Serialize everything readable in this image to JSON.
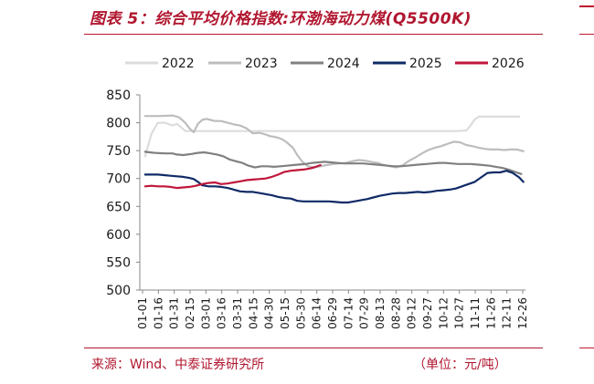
{
  "title": "图表 5：综合平均价格指数:环渤海动力煤(Q5500K)",
  "source_label": "来源：",
  "source_text": "Wind、中泰证券研究所",
  "unit_text": "（单位：元/吨）",
  "colors": {
    "accent": "#b0162f",
    "s2022": "#dcdcdc",
    "s2023": "#bdbdbd",
    "s2024": "#808080",
    "s2025": "#0f2a66",
    "s2026": "#c0163a"
  },
  "chart_data": {
    "type": "line",
    "title": "综合平均价格指数:环渤海动力煤(Q5500K)",
    "xlabel": "",
    "ylabel": "",
    "ylim": [
      500,
      850
    ],
    "yticks": [
      500,
      550,
      600,
      650,
      700,
      750,
      800,
      850
    ],
    "x_range": [
      1,
      366
    ],
    "grid": false,
    "legend": "top",
    "xticks": [
      "01-01",
      "01-16",
      "01-31",
      "02-15",
      "03-01",
      "03-16",
      "03-31",
      "04-15",
      "04-30",
      "05-15",
      "05-30",
      "06-14",
      "06-29",
      "07-14",
      "07-29",
      "08-13",
      "08-28",
      "09-12",
      "09-27",
      "10-12",
      "10-27",
      "11-11",
      "11-26",
      "12-11",
      "12-26"
    ],
    "series": [
      {
        "name": "2022",
        "color": "#dcdcdc",
        "x": [
          6,
          12,
          18,
          25,
          32,
          36,
          40,
          44,
          48,
          55,
          70,
          100,
          150,
          200,
          250,
          300,
          310,
          314,
          318,
          322,
          330,
          360
        ],
        "y": [
          740,
          780,
          800,
          800,
          795,
          798,
          792,
          785,
          785,
          785,
          785,
          785,
          785,
          785,
          785,
          785,
          786,
          795,
          806,
          811,
          811,
          811
        ]
      },
      {
        "name": "2023",
        "color": "#bdbdbd",
        "x": [
          6,
          20,
          32,
          38,
          44,
          48,
          52,
          56,
          60,
          64,
          68,
          72,
          78,
          84,
          90,
          96,
          102,
          108,
          114,
          120,
          124,
          128,
          132,
          136,
          140,
          146,
          150,
          155,
          160,
          166,
          172,
          178,
          184,
          190,
          196,
          202,
          208,
          214,
          220,
          226,
          232,
          238,
          244,
          250,
          256,
          262,
          268,
          274,
          280,
          286,
          292,
          298,
          304,
          310,
          316,
          322,
          328,
          334,
          340,
          346,
          352,
          358,
          364
        ],
        "y": [
          812,
          812,
          813,
          810,
          800,
          790,
          783,
          798,
          805,
          807,
          805,
          803,
          803,
          800,
          797,
          795,
          790,
          781,
          782,
          779,
          776,
          775,
          773,
          770,
          765,
          755,
          742,
          730,
          722,
          720,
          722,
          724,
          726,
          727,
          728,
          731,
          733,
          732,
          730,
          728,
          724,
          722,
          720,
          724,
          732,
          738,
          745,
          751,
          755,
          758,
          762,
          766,
          765,
          760,
          758,
          755,
          753,
          752,
          752,
          751,
          752,
          752,
          749
        ]
      },
      {
        "name": "2024",
        "color": "#808080",
        "x": [
          6,
          15,
          25,
          32,
          36,
          42,
          50,
          56,
          62,
          68,
          74,
          80,
          86,
          92,
          98,
          104,
          110,
          116,
          122,
          128,
          134,
          140,
          146,
          152,
          158,
          164,
          170,
          176,
          182,
          188,
          194,
          200,
          206,
          212,
          218,
          224,
          230,
          236,
          242,
          248,
          254,
          260,
          266,
          272,
          278,
          284,
          290,
          296,
          302,
          308,
          314,
          320,
          326,
          332,
          338,
          344,
          350,
          356,
          362
        ],
        "y": [
          748,
          746,
          745,
          745,
          743,
          742,
          744,
          746,
          747,
          745,
          743,
          740,
          734,
          731,
          728,
          723,
          720,
          722,
          722,
          721,
          722,
          723,
          724,
          725,
          726,
          728,
          729,
          730,
          729,
          728,
          727,
          727,
          727,
          727,
          726,
          725,
          724,
          723,
          722,
          722,
          723,
          724,
          725,
          726,
          727,
          728,
          728,
          727,
          726,
          726,
          726,
          725,
          724,
          723,
          721,
          719,
          716,
          712,
          708
        ]
      },
      {
        "name": "2025",
        "color": "#0f2a66",
        "x": [
          6,
          12,
          18,
          24,
          30,
          36,
          42,
          48,
          52,
          56,
          60,
          66,
          72,
          78,
          84,
          90,
          96,
          102,
          108,
          114,
          120,
          126,
          132,
          138,
          144,
          150,
          156,
          162,
          168,
          174,
          180,
          186,
          192,
          198,
          204,
          210,
          216,
          222,
          228,
          234,
          240,
          246,
          252,
          258,
          264,
          270,
          276,
          282,
          288,
          294,
          300,
          306,
          312,
          318,
          324,
          330,
          336,
          342,
          348,
          354,
          360,
          364
        ],
        "y": [
          707,
          707,
          707,
          706,
          705,
          704,
          703,
          701,
          699,
          694,
          688,
          686,
          686,
          685,
          683,
          680,
          677,
          676,
          676,
          674,
          672,
          670,
          667,
          665,
          664,
          660,
          659,
          659,
          659,
          659,
          659,
          658,
          657,
          657,
          659,
          661,
          663,
          666,
          669,
          671,
          673,
          674,
          674,
          675,
          676,
          675,
          676,
          678,
          679,
          680,
          682,
          686,
          690,
          694,
          702,
          710,
          711,
          711,
          714,
          710,
          702,
          694
        ]
      },
      {
        "name": "2026",
        "color": "#c0163a",
        "x": [
          6,
          12,
          18,
          24,
          30,
          36,
          42,
          48,
          54,
          60,
          66,
          72,
          78,
          84,
          90,
          96,
          102,
          108,
          114,
          120,
          126,
          132,
          138,
          144,
          150,
          156,
          162,
          166,
          172
        ],
        "y": [
          686,
          687,
          686,
          686,
          685,
          683,
          684,
          685,
          687,
          690,
          692,
          693,
          690,
          691,
          693,
          695,
          697,
          698,
          699,
          700,
          703,
          707,
          712,
          714,
          715,
          716,
          718,
          720,
          724
        ]
      }
    ]
  }
}
